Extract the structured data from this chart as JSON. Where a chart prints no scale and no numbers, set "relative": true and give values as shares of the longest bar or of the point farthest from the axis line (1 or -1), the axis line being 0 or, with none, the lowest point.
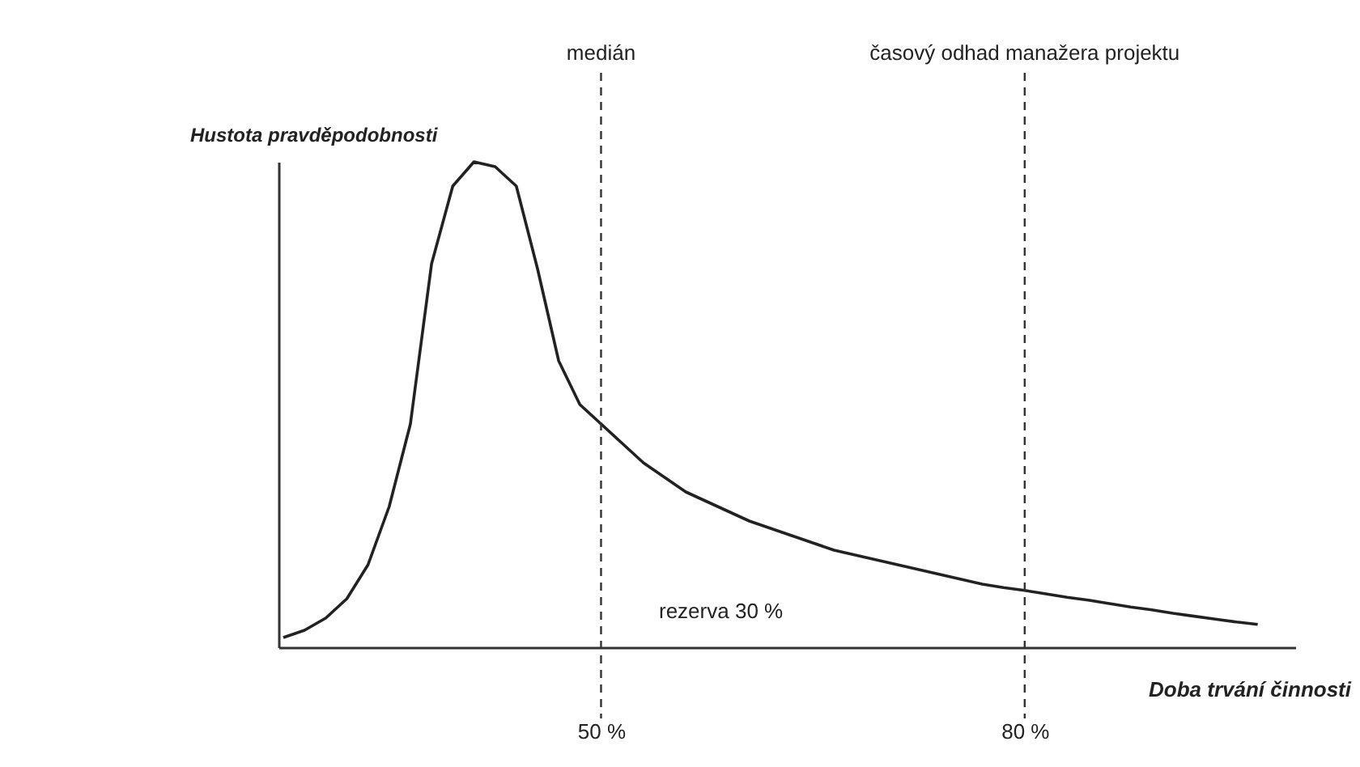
{
  "chart_data": {
    "type": "line",
    "relative": true,
    "tick_labels": "x",
    "grid": false,
    "marker": "none",
    "line_style": "solid",
    "xlabel": "Doba trvání činnosti",
    "ylabel": "Hustota pravděpodobnosti",
    "categories": [
      null,
      null,
      null,
      null,
      null,
      null,
      null,
      null,
      null,
      null,
      null,
      null,
      null,
      null,
      null,
      "50 %",
      null,
      null,
      null,
      null,
      null,
      null,
      null,
      null,
      null,
      null,
      null,
      null,
      null,
      null,
      null,
      null,
      null,
      null,
      null,
      "80 %",
      null,
      null,
      null,
      null,
      null,
      null,
      null,
      null,
      null,
      null,
      null
    ],
    "series": [
      {
        "color": "#222222",
        "values": [
          0.02,
          0.035,
          0.06,
          0.1,
          0.17,
          0.29,
          0.46,
          0.79,
          0.95,
          1,
          0.99,
          0.95,
          0.78,
          0.59,
          0.5,
          0.46,
          0.42,
          0.38,
          0.35,
          0.32,
          0.3,
          0.28,
          0.26,
          0.245,
          0.23,
          0.215,
          0.2,
          0.19,
          0.18,
          0.17,
          0.16,
          0.15,
          0.14,
          0.13,
          0.123,
          0.117,
          0.11,
          0.103,
          0.097,
          0.09,
          0.083,
          0.077,
          0.07,
          0.064,
          0.058,
          0.052,
          0.047
        ]
      }
    ],
    "ref_lines": [
      {
        "axis": "x",
        "value": "50 %",
        "label": "medián",
        "line_style": "dashed",
        "color": "#333333"
      },
      {
        "axis": "x",
        "value": "80 %",
        "label": "časový odhad manažera projektu",
        "line_style": "dashed",
        "color": "#333333"
      }
    ],
    "annotations": [
      "rezerva 30 %"
    ]
  }
}
